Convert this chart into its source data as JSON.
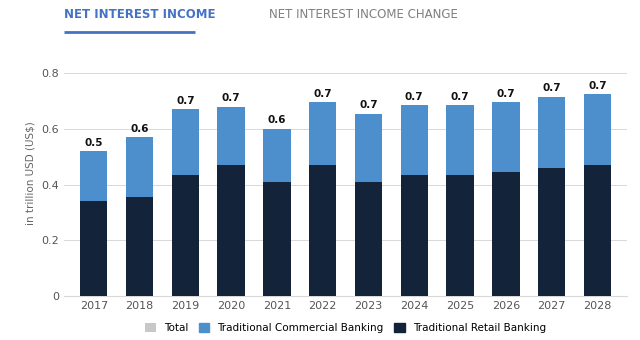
{
  "years": [
    2017,
    2018,
    2019,
    2020,
    2021,
    2022,
    2023,
    2024,
    2025,
    2026,
    2027,
    2028
  ],
  "retail": [
    0.34,
    0.355,
    0.435,
    0.47,
    0.41,
    0.47,
    0.41,
    0.435,
    0.435,
    0.445,
    0.46,
    0.47
  ],
  "totals": [
    0.52,
    0.57,
    0.67,
    0.68,
    0.6,
    0.695,
    0.655,
    0.685,
    0.685,
    0.695,
    0.715,
    0.725
  ],
  "total_labels": [
    "0.5",
    "0.6",
    "0.7",
    "0.7",
    "0.6",
    "0.7",
    "0.7",
    "0.7",
    "0.7",
    "0.7",
    "0.7",
    "0.7"
  ],
  "retail_color": "#12233a",
  "commercial_color": "#4d8fcc",
  "bg_color": "#ffffff",
  "grid_color": "#d8d8d8",
  "ylabel": "in trillion USD (US$)",
  "ylim": [
    0,
    0.88
  ],
  "yticks": [
    0,
    0.2,
    0.4,
    0.6,
    0.8
  ],
  "tab1_text": "NET INTEREST INCOME",
  "tab2_text": "NET INTEREST INCOME CHANGE",
  "tab1_color": "#4472c4",
  "tab2_color": "#7f7f7f",
  "legend_total_color": "#c8c8c8",
  "legend_commercial_color": "#4d8fcc",
  "legend_retail_color": "#12233a"
}
